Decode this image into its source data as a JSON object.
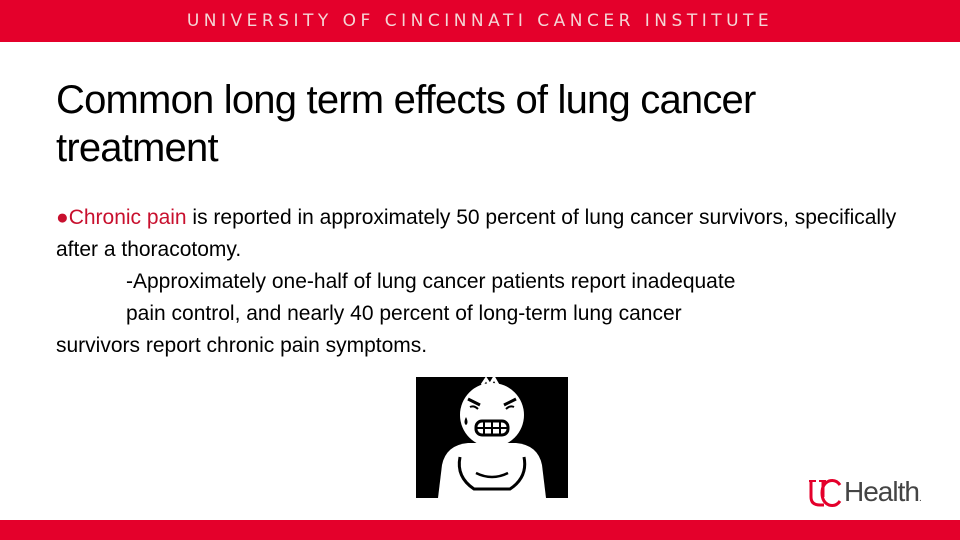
{
  "header": {
    "banner": "UNIVERSITY OF CINCINNATI CANCER INSTITUTE"
  },
  "slide": {
    "title": "Common long term effects of lung cancer treatment",
    "bullet": {
      "marker": "●",
      "highlight": "Chronic pain",
      "rest": " is reported in approximately 50 percent of lung cancer survivors, specifically after a thoracotomy."
    },
    "sub_line_1": "-Approximately one-half of lung cancer patients report inadequate",
    "sub_line_2": "pain control, and nearly 40 percent of long-term lung cancer",
    "sub_line_3": "survivors report chronic pain symptoms."
  },
  "illustration": {
    "icon": "person-in-pain-icon"
  },
  "logo": {
    "word": "Health",
    "mark": "UC",
    "suffix": "."
  },
  "colors": {
    "brand_red": "#e4002b",
    "highlight_red": "#c8102e"
  }
}
